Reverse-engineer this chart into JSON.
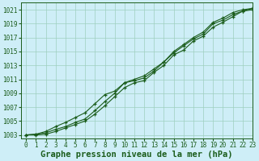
{
  "title": "Graphe pression niveau de la mer (hPa)",
  "background_color": "#ceeef7",
  "grid_color": "#9ecfbe",
  "line_color": "#1a5c1a",
  "marker_color": "#1a5c1a",
  "xlim": [
    -0.5,
    23
  ],
  "ylim": [
    1002.5,
    1022
  ],
  "xticks": [
    0,
    1,
    2,
    3,
    4,
    5,
    6,
    7,
    8,
    9,
    10,
    11,
    12,
    13,
    14,
    15,
    16,
    17,
    18,
    19,
    20,
    21,
    22,
    23
  ],
  "yticks": [
    1003,
    1005,
    1007,
    1009,
    1011,
    1013,
    1015,
    1017,
    1019,
    1021
  ],
  "series1": [
    1003.0,
    1003.1,
    1003.3,
    1003.8,
    1004.2,
    1004.8,
    1005.3,
    1006.5,
    1007.8,
    1009.0,
    1010.5,
    1010.8,
    1011.2,
    1012.2,
    1013.5,
    1014.8,
    1015.8,
    1016.8,
    1017.5,
    1019.0,
    1019.5,
    1020.3,
    1020.8,
    1021.2
  ],
  "series2": [
    1003.0,
    1003.1,
    1003.5,
    1004.2,
    1004.8,
    1005.5,
    1006.2,
    1007.5,
    1008.8,
    1009.3,
    1010.5,
    1011.0,
    1011.5,
    1012.5,
    1013.5,
    1015.0,
    1016.0,
    1017.0,
    1017.8,
    1019.2,
    1019.8,
    1020.6,
    1021.0,
    1021.2
  ],
  "series3": [
    1003.0,
    1003.0,
    1003.1,
    1003.5,
    1004.0,
    1004.5,
    1005.0,
    1006.0,
    1007.2,
    1008.5,
    1009.8,
    1010.5,
    1010.8,
    1012.0,
    1013.0,
    1014.5,
    1015.2,
    1016.5,
    1017.2,
    1018.5,
    1019.2,
    1020.0,
    1020.8,
    1021.0
  ],
  "title_fontsize": 7.5,
  "tick_fontsize": 5.5,
  "font_color": "#1a5c1a"
}
